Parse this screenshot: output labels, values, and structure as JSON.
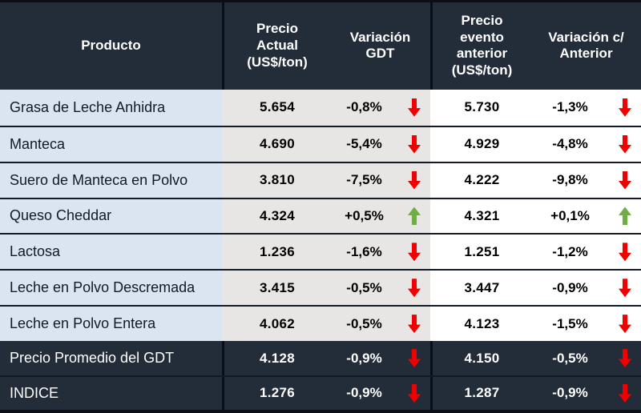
{
  "colors": {
    "header_bg": "#232C39",
    "summary_bg": "#232C39",
    "row_label_bg": "#DBE5F1",
    "price_gdt_bg": "#E8E6E4",
    "price_prev_bg": "#FFFFFF",
    "border_black": "#0B0F15",
    "text_light": "#FFFFFF",
    "text_dark": "#121A26",
    "down_red": "#F00000",
    "up_green": "#6FAD47"
  },
  "table": {
    "headers": {
      "producto": "Producto",
      "precio_actual": "Precio\nActual\n(US$/ton)",
      "variacion_gdt": "Variación\nGDT",
      "precio_evento_anterior": "Precio\nevento\nanterior\n(US$/ton)",
      "variacion_c_anterior": "Variación c/\nAnterior"
    },
    "rows": [
      {
        "producto": "Grasa de Leche Anhidra",
        "precio_actual": "5.654",
        "variacion_gdt": "-0,8%",
        "variacion_gdt_dir": "down",
        "precio_anterior": "5.730",
        "variacion_anterior": "-1,3%",
        "variacion_anterior_dir": "down"
      },
      {
        "producto": "Manteca",
        "precio_actual": "4.690",
        "variacion_gdt": "-5,4%",
        "variacion_gdt_dir": "down",
        "precio_anterior": "4.929",
        "variacion_anterior": "-4,8%",
        "variacion_anterior_dir": "down"
      },
      {
        "producto": "Suero de Manteca en Polvo",
        "precio_actual": "3.810",
        "variacion_gdt": "-7,5%",
        "variacion_gdt_dir": "down",
        "precio_anterior": "4.222",
        "variacion_anterior": "-9,8%",
        "variacion_anterior_dir": "down"
      },
      {
        "producto": "Queso Cheddar",
        "precio_actual": "4.324",
        "variacion_gdt": "+0,5%",
        "variacion_gdt_dir": "up",
        "precio_anterior": "4.321",
        "variacion_anterior": "+0,1%",
        "variacion_anterior_dir": "up"
      },
      {
        "producto": "Lactosa",
        "precio_actual": "1.236",
        "variacion_gdt": "-1,6%",
        "variacion_gdt_dir": "down",
        "precio_anterior": "1.251",
        "variacion_anterior": "-1,2%",
        "variacion_anterior_dir": "down"
      },
      {
        "producto": "Leche en Polvo Descremada",
        "precio_actual": "3.415",
        "variacion_gdt": "-0,5%",
        "variacion_gdt_dir": "down",
        "precio_anterior": "3.447",
        "variacion_anterior": "-0,9%",
        "variacion_anterior_dir": "down"
      },
      {
        "producto": "Leche en Polvo Entera",
        "precio_actual": "4.062",
        "variacion_gdt": "-0,5%",
        "variacion_gdt_dir": "down",
        "precio_anterior": "4.123",
        "variacion_anterior": "-1,5%",
        "variacion_anterior_dir": "down"
      }
    ],
    "summary_rows": [
      {
        "producto": "Precio Promedio del GDT",
        "precio_actual": "4.128",
        "variacion_gdt": "-0,9%",
        "variacion_gdt_dir": "down",
        "precio_anterior": "4.150",
        "variacion_anterior": "-0,5%",
        "variacion_anterior_dir": "down"
      },
      {
        "producto": "INDICE",
        "precio_actual": "1.276",
        "variacion_gdt": "-0,9%",
        "variacion_gdt_dir": "down",
        "precio_anterior": "1.287",
        "variacion_anterior": "-0,9%",
        "variacion_anterior_dir": "down"
      }
    ]
  }
}
